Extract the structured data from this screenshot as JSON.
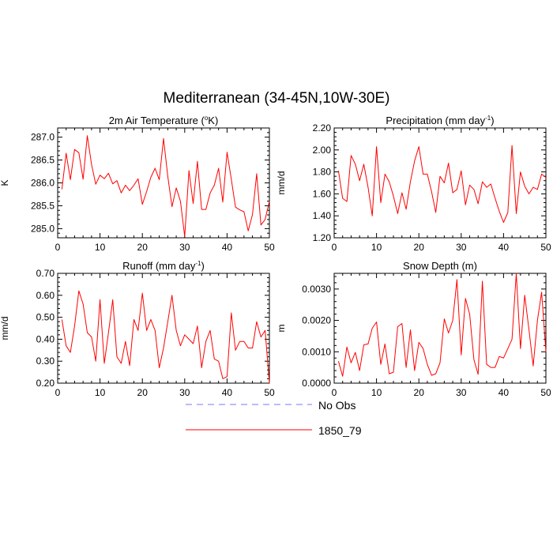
{
  "main_title": "Mediterranean (34-45N,10W-30E)",
  "legend": [
    {
      "label": "No Obs",
      "color": "#7777ff",
      "style": "dashed"
    },
    {
      "label": "1850_79",
      "color": "#ff0000",
      "style": "solid"
    }
  ],
  "chart_data": [
    {
      "type": "line",
      "title": "2m Air Temperature (",
      "title_sup": "o",
      "title_after": "K)",
      "ylabel": "K",
      "xlabel": "",
      "xlim": [
        0,
        50
      ],
      "ylim": [
        284.8,
        287.2
      ],
      "xticks": [
        0,
        10,
        20,
        30,
        40,
        50
      ],
      "xtick_labels": [
        "0",
        "10",
        "20",
        "30",
        "40",
        "50"
      ],
      "yticks": [
        285.0,
        285.5,
        286.0,
        286.5,
        287.0
      ],
      "ytick_labels": [
        "285.0",
        "285.5",
        "286.0",
        "286.5",
        "287.0"
      ],
      "series": [
        {
          "name": "1850_79",
          "color": "#ff0000",
          "x": [
            1,
            2,
            3,
            4,
            5,
            6,
            7,
            8,
            9,
            10,
            11,
            12,
            13,
            14,
            15,
            16,
            17,
            18,
            19,
            20,
            21,
            22,
            23,
            24,
            25,
            26,
            27,
            28,
            29,
            30,
            31,
            32,
            33,
            34,
            35,
            36,
            37,
            38,
            39,
            40,
            41,
            42,
            43,
            44,
            45,
            46,
            47,
            48,
            49,
            50
          ],
          "values": [
            285.86,
            286.65,
            286.07,
            286.73,
            286.66,
            286.08,
            287.03,
            286.4,
            285.97,
            286.17,
            286.09,
            286.21,
            285.98,
            286.05,
            285.78,
            285.95,
            285.83,
            285.95,
            286.09,
            285.53,
            285.81,
            286.12,
            286.32,
            286.07,
            286.97,
            286.14,
            285.48,
            285.89,
            285.6,
            284.83,
            286.27,
            285.55,
            286.47,
            285.42,
            285.42,
            285.78,
            285.95,
            286.32,
            285.58,
            286.67,
            286.08,
            285.47,
            285.41,
            285.37,
            284.95,
            285.31,
            286.2,
            285.08,
            285.2,
            285.6
          ]
        }
      ]
    },
    {
      "type": "line",
      "title": "Precipitation (mm day",
      "title_sup": "-1",
      "title_after": ")",
      "ylabel": "mm/d",
      "xlabel": "",
      "xlim": [
        0,
        50
      ],
      "ylim": [
        1.2,
        2.2
      ],
      "xticks": [
        0,
        10,
        20,
        30,
        40,
        50
      ],
      "xtick_labels": [
        "0",
        "10",
        "20",
        "30",
        "40",
        "50"
      ],
      "yticks": [
        1.2,
        1.4,
        1.6,
        1.8,
        2.0,
        2.2
      ],
      "ytick_labels": [
        "1.20",
        "1.40",
        "1.60",
        "1.80",
        "2.00",
        "2.20"
      ],
      "series": [
        {
          "name": "1850_79",
          "color": "#ff0000",
          "x": [
            1,
            2,
            3,
            4,
            5,
            6,
            7,
            8,
            9,
            10,
            11,
            12,
            13,
            14,
            15,
            16,
            17,
            18,
            19,
            20,
            21,
            22,
            23,
            24,
            25,
            26,
            27,
            28,
            29,
            30,
            31,
            32,
            33,
            34,
            35,
            36,
            37,
            38,
            39,
            40,
            41,
            42,
            43,
            44,
            45,
            46,
            47,
            48,
            49,
            50
          ],
          "values": [
            1.81,
            1.56,
            1.53,
            1.95,
            1.87,
            1.72,
            1.87,
            1.66,
            1.4,
            2.03,
            1.52,
            1.78,
            1.71,
            1.58,
            1.42,
            1.61,
            1.46,
            1.71,
            1.9,
            2.03,
            1.78,
            1.78,
            1.62,
            1.43,
            1.76,
            1.7,
            1.88,
            1.61,
            1.64,
            1.81,
            1.5,
            1.68,
            1.64,
            1.51,
            1.71,
            1.66,
            1.69,
            1.56,
            1.44,
            1.34,
            1.43,
            2.04,
            1.42,
            1.8,
            1.67,
            1.6,
            1.66,
            1.64,
            1.78,
            1.75
          ]
        }
      ]
    },
    {
      "type": "line",
      "title": "Runoff (mm day",
      "title_sup": "-1",
      "title_after": ")",
      "ylabel": "mm/d",
      "xlabel": "",
      "xlim": [
        0,
        50
      ],
      "ylim": [
        0.2,
        0.7
      ],
      "xticks": [
        0,
        10,
        20,
        30,
        40,
        50
      ],
      "xtick_labels": [
        "0",
        "10",
        "20",
        "30",
        "40",
        "50"
      ],
      "yticks": [
        0.2,
        0.3,
        0.4,
        0.5,
        0.6,
        0.7
      ],
      "ytick_labels": [
        "0.20",
        "0.30",
        "0.40",
        "0.50",
        "0.60",
        "0.70"
      ],
      "series": [
        {
          "name": "1850_79",
          "color": "#ff0000",
          "x": [
            1,
            2,
            3,
            4,
            5,
            6,
            7,
            8,
            9,
            10,
            11,
            12,
            13,
            14,
            15,
            16,
            17,
            18,
            19,
            20,
            21,
            22,
            23,
            24,
            25,
            26,
            27,
            28,
            29,
            30,
            31,
            32,
            33,
            34,
            35,
            36,
            37,
            38,
            39,
            40,
            41,
            42,
            43,
            44,
            45,
            46,
            47,
            48,
            49,
            50
          ],
          "values": [
            0.49,
            0.37,
            0.34,
            0.46,
            0.62,
            0.56,
            0.43,
            0.41,
            0.3,
            0.58,
            0.29,
            0.43,
            0.58,
            0.32,
            0.29,
            0.39,
            0.28,
            0.49,
            0.44,
            0.61,
            0.44,
            0.49,
            0.44,
            0.27,
            0.36,
            0.48,
            0.6,
            0.44,
            0.37,
            0.42,
            0.4,
            0.38,
            0.46,
            0.27,
            0.39,
            0.44,
            0.31,
            0.3,
            0.22,
            0.23,
            0.52,
            0.35,
            0.39,
            0.39,
            0.36,
            0.36,
            0.48,
            0.41,
            0.44,
            0.2
          ]
        }
      ]
    },
    {
      "type": "line",
      "title": "Snow Depth (m)",
      "title_sup": "",
      "title_after": "",
      "ylabel": "m",
      "xlabel": "",
      "xlim": [
        0,
        50
      ],
      "ylim": [
        0.0,
        0.0035
      ],
      "xticks": [
        0,
        10,
        20,
        30,
        40,
        50
      ],
      "xtick_labels": [
        "0",
        "10",
        "20",
        "30",
        "40",
        "50"
      ],
      "yticks": [
        0.0,
        0.001,
        0.002,
        0.003
      ],
      "ytick_labels": [
        "0.0000",
        "0.0010",
        "0.0020",
        "0.0030"
      ],
      "series": [
        {
          "name": "1850_79",
          "color": "#ff0000",
          "x": [
            1,
            2,
            3,
            4,
            5,
            6,
            7,
            8,
            9,
            10,
            11,
            12,
            13,
            14,
            15,
            16,
            17,
            18,
            19,
            20,
            21,
            22,
            23,
            24,
            25,
            26,
            27,
            28,
            29,
            30,
            31,
            32,
            33,
            34,
            35,
            36,
            37,
            38,
            39,
            40,
            41,
            42,
            43,
            44,
            45,
            46,
            47,
            48,
            49,
            50
          ],
          "values": [
            0.0007,
            0.00022,
            0.00115,
            0.00065,
            0.00098,
            0.0004,
            0.00122,
            0.00125,
            0.00175,
            0.00195,
            0.0006,
            0.00125,
            0.0003,
            0.00035,
            0.0018,
            0.0019,
            0.0005,
            0.0017,
            0.0004,
            0.0013,
            0.0011,
            0.0006,
            0.00025,
            0.0003,
            0.00065,
            0.00205,
            0.0016,
            0.002,
            0.0033,
            0.0009,
            0.0027,
            0.0022,
            0.00075,
            0.00028,
            0.00325,
            0.0006,
            0.0005,
            0.0005,
            0.00085,
            0.0008,
            0.0011,
            0.0014,
            0.0035,
            0.0011,
            0.0028,
            0.0017,
            0.00055,
            0.002,
            0.0029,
            0.001
          ]
        }
      ]
    }
  ]
}
